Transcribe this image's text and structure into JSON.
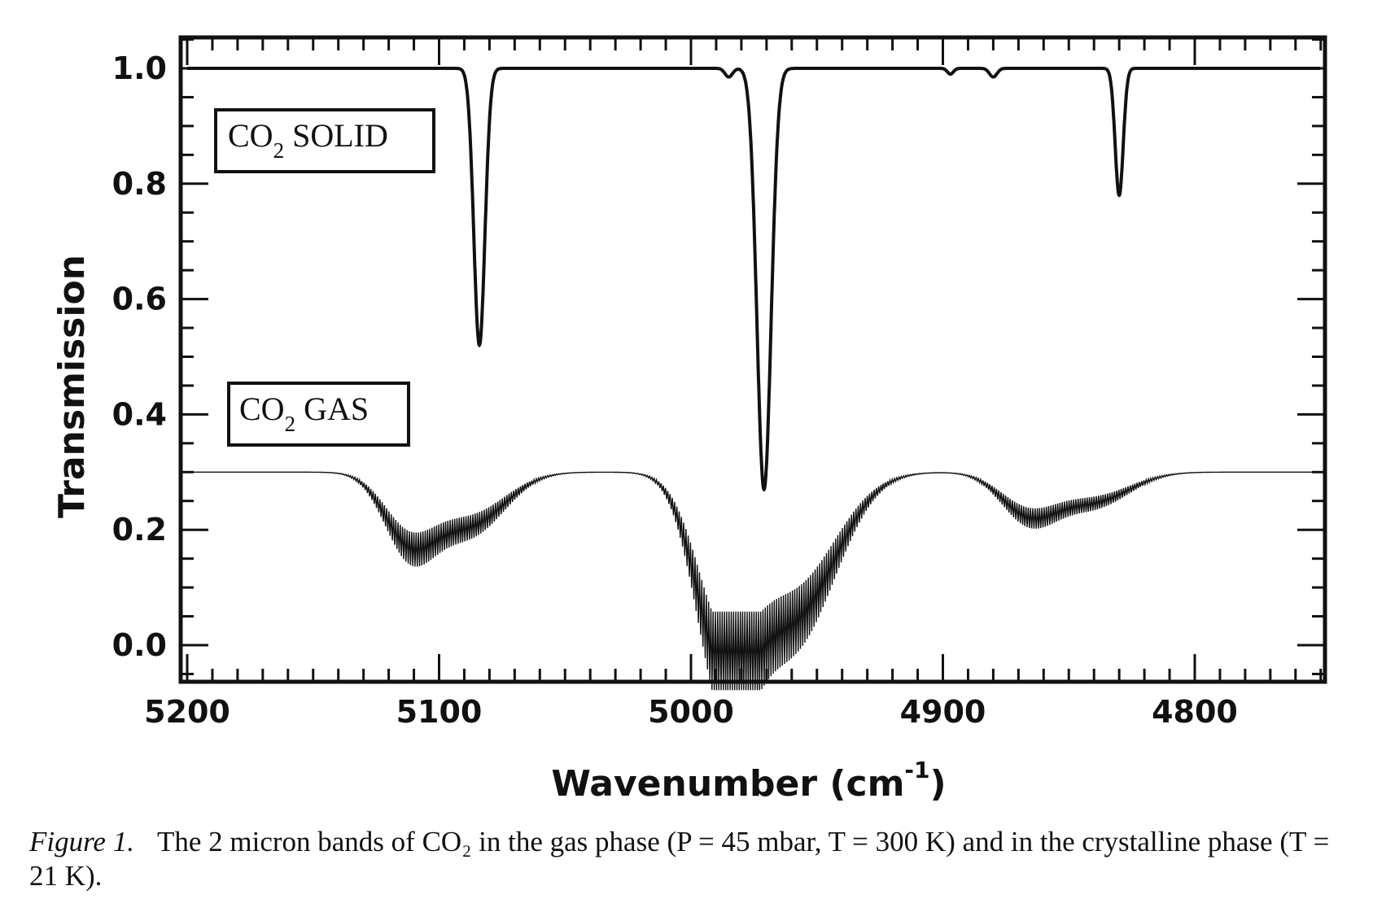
{
  "chart_data": {
    "type": "line",
    "xlabel": "Wavenumber (cm⁻¹)",
    "xlabel_main": "Wavenumber (cm",
    "xlabel_exp": "-1",
    "xlabel_close": ")",
    "ylabel": "Transmission",
    "xlim": [
      5200,
      4750
    ],
    "x_reversed": true,
    "ylim": [
      -0.06,
      1.06
    ],
    "xticks": [
      5200,
      5100,
      5000,
      4900,
      4800
    ],
    "xtick_labels": [
      "5200",
      "5100",
      "5000",
      "4900",
      "4800"
    ],
    "yticks": [
      0.0,
      0.2,
      0.4,
      0.6,
      0.8,
      1.0
    ],
    "ytick_labels": [
      "0.0",
      "0.2",
      "0.4",
      "0.6",
      "0.8",
      "1.0"
    ],
    "grid": false,
    "series": [
      {
        "name": "CO2 SOLID",
        "label_main": "CO",
        "label_sub": "2",
        "label_rest": " SOLID",
        "legend_placement": "upper-left",
        "baseline": 1.0,
        "absorption_lines": [
          {
            "x": 5084,
            "min": 0.52,
            "width": 2.2
          },
          {
            "x": 4971,
            "min": 0.27,
            "width": 2.8
          },
          {
            "x": 4830,
            "min": 0.78,
            "width": 1.6
          },
          {
            "x": 4985,
            "min": 0.985,
            "width": 1.5
          },
          {
            "x": 4880,
            "min": 0.985,
            "width": 1.5
          },
          {
            "x": 4897,
            "min": 0.99,
            "width": 1.2
          }
        ]
      },
      {
        "name": "CO2 GAS",
        "label_main": "CO",
        "label_sub": "2",
        "label_rest": " GAS",
        "legend_placement": "middle-left",
        "baseline": 0.3,
        "bands": [
          {
            "x": 5112,
            "min": 0.19,
            "width": 10
          },
          {
            "x": 5088,
            "min": 0.21,
            "width": 14
          },
          {
            "x": 4987,
            "min": 0.01,
            "width": 11
          },
          {
            "x": 4960,
            "min": 0.05,
            "width": 17
          },
          {
            "x": 4866,
            "min": 0.23,
            "width": 11
          },
          {
            "x": 4840,
            "min": 0.25,
            "width": 14
          }
        ],
        "rovibrational_ripple": true
      }
    ]
  },
  "caption": {
    "label": "Figure 1.",
    "text": "The 2 micron bands of CO₂ in the gas phase (P = 45 mbar, T = 300 K) and in the crystalline phase (T = 21 K)."
  }
}
